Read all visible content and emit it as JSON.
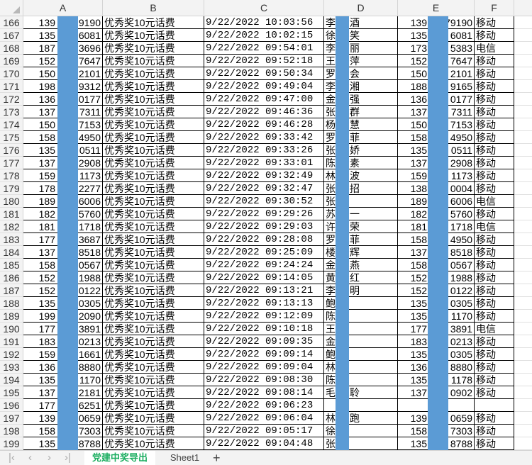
{
  "columns": [
    "A",
    "B",
    "C",
    "D",
    "E",
    "F"
  ],
  "redaction_color": "#5b9bd5",
  "rows": [
    {
      "n": "166",
      "a1": "139",
      "a2": "9190",
      "b": "优秀奖10元话费",
      "c": "9/22/2022 10:03:56",
      "d1": "李",
      "d2": "酒",
      "e1": "139",
      "e2": "79190",
      "f": "移动"
    },
    {
      "n": "167",
      "a1": "135",
      "a2": "6081",
      "b": "优秀奖10元话费",
      "c": "9/22/2022 10:02:15",
      "d1": "徐",
      "d2": "笑",
      "e1": "135",
      "e2": "6081",
      "f": "移动"
    },
    {
      "n": "168",
      "a1": "187",
      "a2": "3696",
      "b": "优秀奖10元话费",
      "c": "9/22/2022 09:54:01",
      "d1": "李",
      "d2": "丽",
      "e1": "173",
      "e2": "5383",
      "f": "电信"
    },
    {
      "n": "169",
      "a1": "152",
      "a2": "7647",
      "b": "优秀奖10元话费",
      "c": "9/22/2022 09:52:18",
      "d1": "王",
      "d2": "萍",
      "e1": "152",
      "e2": "7647",
      "f": "移动"
    },
    {
      "n": "170",
      "a1": "150",
      "a2": "2101",
      "b": "优秀奖10元话费",
      "c": "9/22/2022 09:50:34",
      "d1": "罗",
      "d2": "会",
      "e1": "150",
      "e2": "2101",
      "f": "移动"
    },
    {
      "n": "171",
      "a1": "198",
      "a2": "9312",
      "b": "优秀奖10元话费",
      "c": "9/22/2022 09:49:04",
      "d1": "李",
      "d2": "湘",
      "e1": "188",
      "e2": "9165",
      "f": "移动"
    },
    {
      "n": "172",
      "a1": "136",
      "a2": "0177",
      "b": "优秀奖10元话费",
      "c": "9/22/2022 09:47:00",
      "d1": "金",
      "d2": "强",
      "e1": "136",
      "e2": "0177",
      "f": "移动"
    },
    {
      "n": "173",
      "a1": "137",
      "a2": "7311",
      "b": "优秀奖10元话费",
      "c": "9/22/2022 09:46:36",
      "d1": "张",
      "d2": "群",
      "e1": "137",
      "e2": "7311",
      "f": "移动"
    },
    {
      "n": "174",
      "a1": "150",
      "a2": "7153",
      "b": "优秀奖10元话费",
      "c": "9/22/2022 09:46:28",
      "d1": "杨",
      "d2": "慧",
      "e1": "150",
      "e2": "7153",
      "f": "移动"
    },
    {
      "n": "175",
      "a1": "158",
      "a2": "4950",
      "b": "优秀奖10元话费",
      "c": "9/22/2022 09:33:42",
      "d1": "罗",
      "d2": "菲",
      "e1": "158",
      "e2": "4950",
      "f": "移动"
    },
    {
      "n": "176",
      "a1": "135",
      "a2": "0511",
      "b": "优秀奖10元话费",
      "c": "9/22/2022 09:33:26",
      "d1": "张",
      "d2": "娇",
      "e1": "135",
      "e2": "0511",
      "f": "移动"
    },
    {
      "n": "177",
      "a1": "137",
      "a2": "2908",
      "b": "优秀奖10元话费",
      "c": "9/22/2022 09:33:01",
      "d1": "陈",
      "d2": "素",
      "e1": "137",
      "e2": "2908",
      "f": "移动"
    },
    {
      "n": "178",
      "a1": "159",
      "a2": "1173",
      "b": "优秀奖10元话费",
      "c": "9/22/2022 09:32:49",
      "d1": "林",
      "d2": "波",
      "e1": "159",
      "e2": "1173",
      "f": "移动"
    },
    {
      "n": "179",
      "a1": "178",
      "a2": "2277",
      "b": "优秀奖10元话费",
      "c": "9/22/2022 09:32:47",
      "d1": "张",
      "d2": "招",
      "e1": "138",
      "e2": "0004",
      "f": "移动"
    },
    {
      "n": "180",
      "a1": "189",
      "a2": "6006",
      "b": "优秀奖10元话费",
      "c": "9/22/2022 09:30:52",
      "d1": "张",
      "d2": "",
      "e1": "189",
      "e2": "6006",
      "f": "电信"
    },
    {
      "n": "181",
      "a1": "182",
      "a2": "5760",
      "b": "优秀奖10元话费",
      "c": "9/22/2022 09:29:26",
      "d1": "苏",
      "d2": "一",
      "e1": "182",
      "e2": "5760",
      "f": "移动"
    },
    {
      "n": "182",
      "a1": "181",
      "a2": "1718",
      "b": "优秀奖10元话费",
      "c": "9/22/2022 09:29:03",
      "d1": "许",
      "d2": "荣",
      "e1": "181",
      "e2": "1718",
      "f": "电信"
    },
    {
      "n": "183",
      "a1": "177",
      "a2": "3687",
      "b": "优秀奖10元话费",
      "c": "9/22/2022 09:28:08",
      "d1": "罗",
      "d2": "菲",
      "e1": "158",
      "e2": "4950",
      "f": "移动"
    },
    {
      "n": "184",
      "a1": "137",
      "a2": "8518",
      "b": "优秀奖10元话费",
      "c": "9/22/2022 09:25:09",
      "d1": "楼",
      "d2": "辉",
      "e1": "137",
      "e2": "8518",
      "f": "移动"
    },
    {
      "n": "185",
      "a1": "158",
      "a2": "0567",
      "b": "优秀奖10元话费",
      "c": "9/22/2022 09:24:24",
      "d1": "金",
      "d2": "燕",
      "e1": "158",
      "e2": "0567",
      "f": "移动"
    },
    {
      "n": "186",
      "a1": "152",
      "a2": "1988",
      "b": "优秀奖10元话费",
      "c": "9/22/2022 09:14:05",
      "d1": "黄",
      "d2": "红",
      "e1": "152",
      "e2": "1988",
      "f": "移动"
    },
    {
      "n": "187",
      "a1": "152",
      "a2": "0122",
      "b": "优秀奖10元话费",
      "c": "9/22/2022 09:13:21",
      "d1": "李",
      "d2": "明",
      "e1": "152",
      "e2": "0122",
      "f": "移动"
    },
    {
      "n": "188",
      "a1": "135",
      "a2": "0305",
      "b": "优秀奖10元话费",
      "c": "9/22/2022 09:13:13",
      "d1": "鲍",
      "d2": "",
      "e1": "135",
      "e2": "0305",
      "f": "移动"
    },
    {
      "n": "189",
      "a1": "199",
      "a2": "2090",
      "b": "优秀奖10元话费",
      "c": "9/22/2022 09:12:09",
      "d1": "陈",
      "d2": "",
      "e1": "135",
      "e2": "1170",
      "f": "移动"
    },
    {
      "n": "190",
      "a1": "177",
      "a2": "3891",
      "b": "优秀奖10元话费",
      "c": "9/22/2022 09:10:18",
      "d1": "王",
      "d2": "",
      "e1": "177",
      "e2": "3891",
      "f": "电信"
    },
    {
      "n": "191",
      "a1": "183",
      "a2": "0213",
      "b": "优秀奖10元话费",
      "c": "9/22/2022 09:09:35",
      "d1": "金",
      "d2": "",
      "e1": "183",
      "e2": "0213",
      "f": "移动"
    },
    {
      "n": "192",
      "a1": "159",
      "a2": "1661",
      "b": "优秀奖10元话费",
      "c": "9/22/2022 09:09:14",
      "d1": "鲍",
      "d2": "",
      "e1": "135",
      "e2": "0305",
      "f": "移动"
    },
    {
      "n": "193",
      "a1": "136",
      "a2": "8880",
      "b": "优秀奖10元话费",
      "c": "9/22/2022 09:09:04",
      "d1": "林",
      "d2": "",
      "e1": "136",
      "e2": "8880",
      "f": "移动"
    },
    {
      "n": "194",
      "a1": "135",
      "a2": "1170",
      "b": "优秀奖10元话费",
      "c": "9/22/2022 09:08:30",
      "d1": "陈",
      "d2": "",
      "e1": "135",
      "e2": "1178",
      "f": "移动"
    },
    {
      "n": "195",
      "a1": "137",
      "a2": "2181",
      "b": "优秀奖10元话费",
      "c": "9/22/2022 09:08:14",
      "d1": "毛",
      "d2": "聆",
      "e1": "137",
      "e2": "0902",
      "f": "移动"
    },
    {
      "n": "196",
      "a1": "177",
      "a2": "6251",
      "b": "优秀奖10元话费",
      "c": "9/22/2022 09:06:23",
      "d1": "",
      "d2": "",
      "e1": "",
      "e2": "",
      "f": ""
    },
    {
      "n": "197",
      "a1": "139",
      "a2": "0659",
      "b": "优秀奖10元话费",
      "c": "9/22/2022 09:06:04",
      "d1": "林",
      "d2": "跑",
      "e1": "139",
      "e2": "0659",
      "f": "移动"
    },
    {
      "n": "198",
      "a1": "158",
      "a2": "7303",
      "b": "优秀奖10元话费",
      "c": "9/22/2022 09:05:17",
      "d1": "徐",
      "d2": "",
      "e1": "158",
      "e2": "7303",
      "f": "移动"
    },
    {
      "n": "199",
      "a1": "135",
      "a2": "8788",
      "b": "优秀奖10元话费",
      "c": "9/22/2022 09:04:48",
      "d1": "张",
      "d2": "",
      "e1": "135",
      "e2": "8788",
      "f": "移动"
    }
  ],
  "sheet_tabs": {
    "active": "党建中奖导出",
    "other": "Sheet1",
    "add": "+"
  },
  "nav_icons": [
    "first-sheet-icon",
    "prev-sheet-icon",
    "next-sheet-icon",
    "last-sheet-icon"
  ],
  "active_tab_color": "#1aad5f"
}
